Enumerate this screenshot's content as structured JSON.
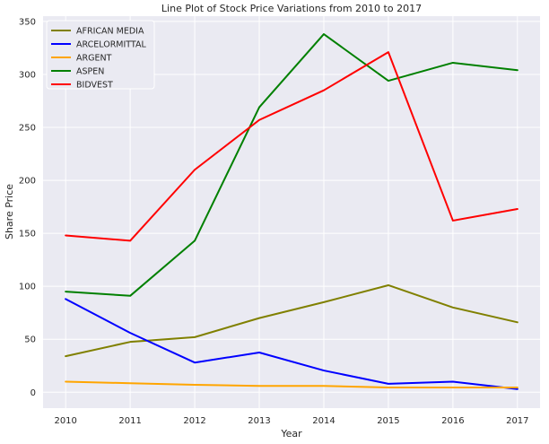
{
  "chart_data": {
    "type": "line",
    "title": "Line Plot of Stock Price Variations from 2010 to 2017",
    "xlabel": "Year",
    "ylabel": "Share Price",
    "x": [
      "2010",
      "2011",
      "2012",
      "2013",
      "2014",
      "2015",
      "2016",
      "2017"
    ],
    "xlim": [
      2009.65,
      2017.35
    ],
    "ylim": [
      -15,
      355
    ],
    "yticks": [
      0,
      50,
      100,
      150,
      200,
      250,
      300,
      350
    ],
    "grid": true,
    "legend_position": "top-left",
    "series": [
      {
        "name": "AFRICAN MEDIA",
        "color": "#808000",
        "values": [
          34,
          47.5,
          52,
          70,
          85,
          101,
          80,
          66
        ]
      },
      {
        "name": "ARCELORMITTAL",
        "color": "#0000ff",
        "values": [
          88,
          56,
          28,
          37.5,
          20.5,
          8,
          10,
          3
        ]
      },
      {
        "name": "ARGENT",
        "color": "#ffa500",
        "values": [
          10,
          8.5,
          7,
          6,
          6,
          4.5,
          4.5,
          4.5
        ]
      },
      {
        "name": "ASPEN",
        "color": "#008000",
        "values": [
          95,
          91,
          143,
          269,
          338,
          294,
          311,
          304
        ]
      },
      {
        "name": "BIDVEST",
        "color": "#ff0000",
        "values": [
          148,
          143,
          210,
          257,
          285,
          321,
          162,
          173
        ]
      }
    ]
  }
}
